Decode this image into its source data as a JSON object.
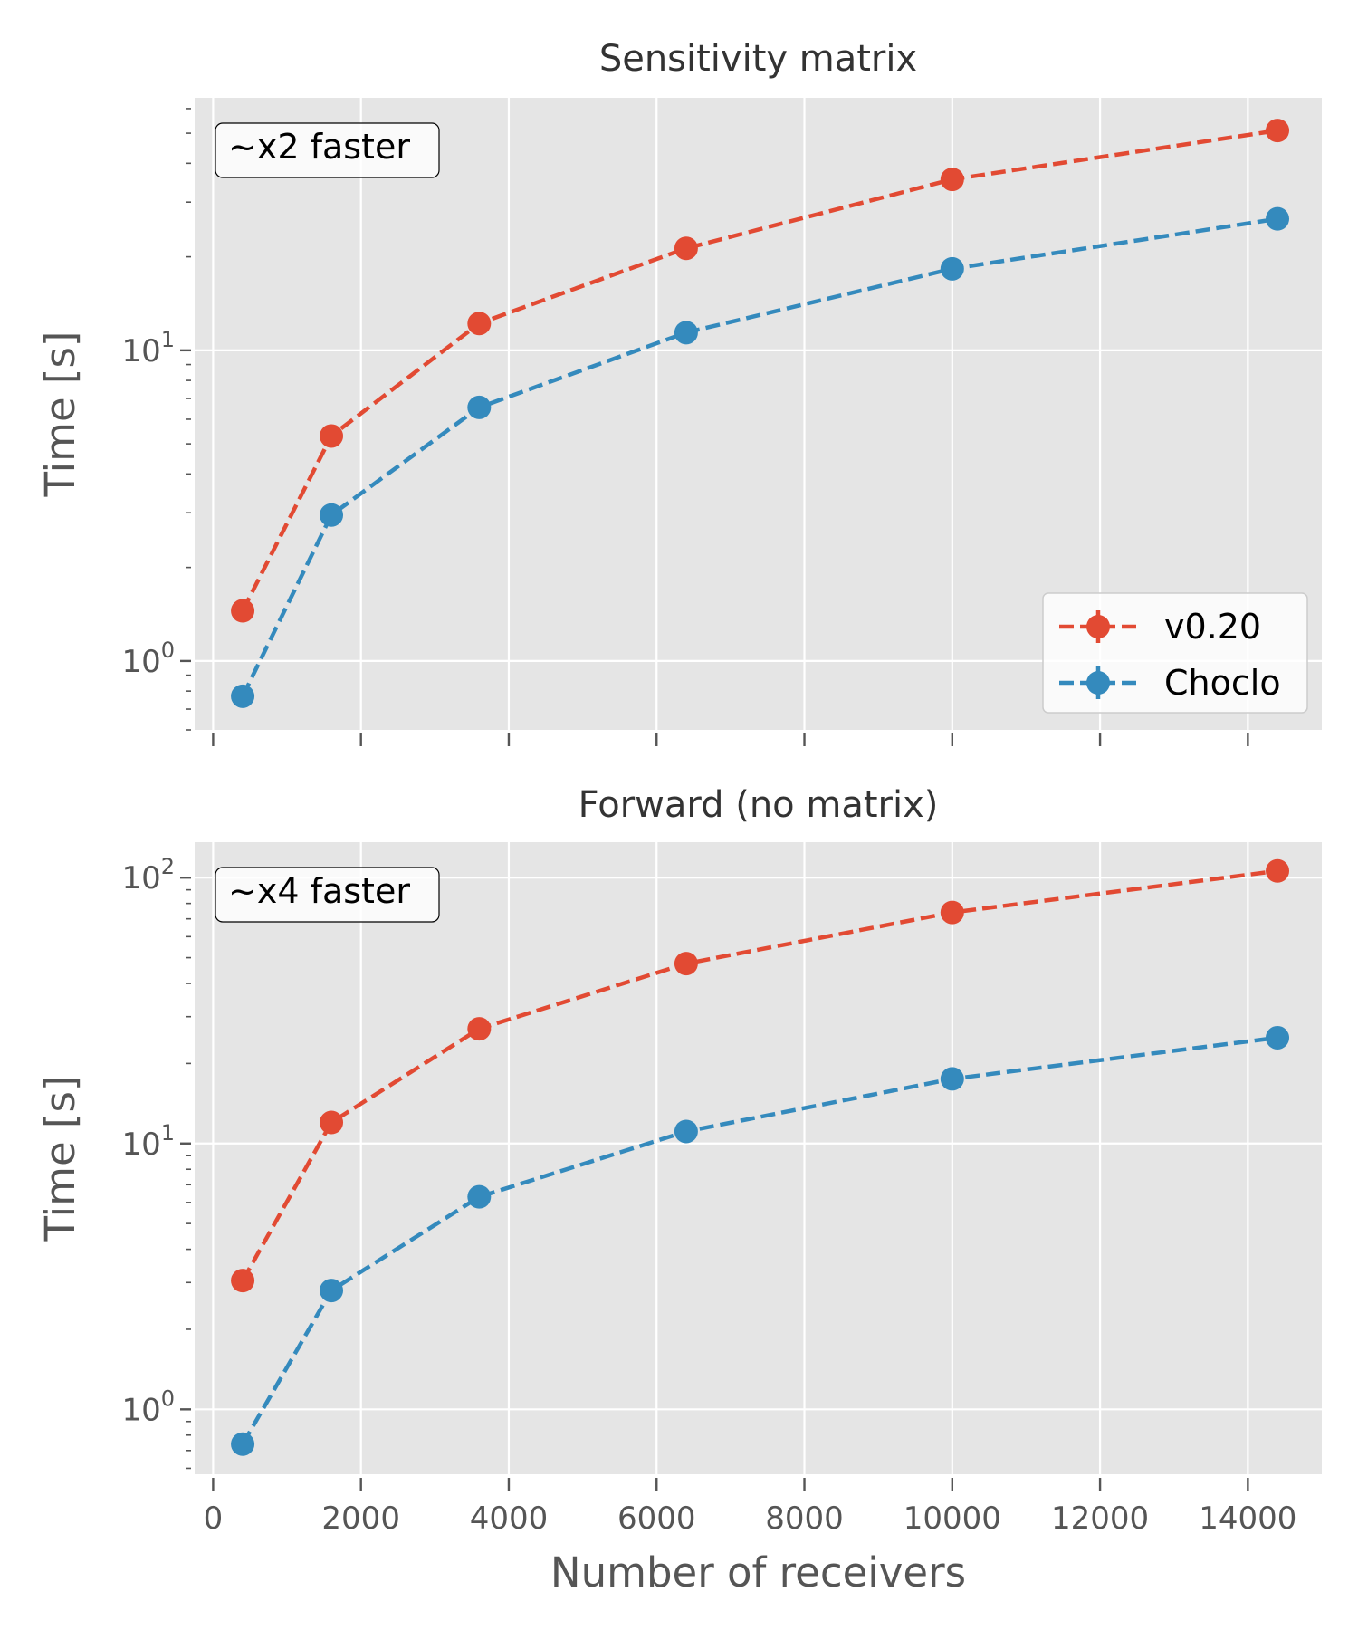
{
  "figure": {
    "xlabel": "Number of receivers"
  },
  "colors": {
    "v020": "#E24A33",
    "choclo": "#348ABD",
    "panel_bg": "#E5E5E5",
    "grid": "#FFFFFF"
  },
  "legend": {
    "placement": "lower-right",
    "entries": [
      "v0.20",
      "Choclo"
    ]
  },
  "chart_data": [
    {
      "type": "line",
      "title": "Sensitivity matrix",
      "ylabel": "Time [s]",
      "yscale": "log",
      "annotation": "~x2 faster",
      "x": [
        400,
        1600,
        3600,
        6400,
        10000,
        14400
      ],
      "xlim": [
        -250,
        15000
      ],
      "ylim": [
        0.6,
        65
      ],
      "ytick_labels": [
        {
          "base": "10",
          "exp": "0"
        },
        {
          "base": "10",
          "exp": "1"
        }
      ],
      "grid": true,
      "series": [
        {
          "name": "v0.20",
          "values": [
            1.45,
            5.3,
            12.2,
            21.3,
            35.5,
            51.0
          ]
        },
        {
          "name": "Choclo",
          "values": [
            0.77,
            2.95,
            6.55,
            11.4,
            18.3,
            26.5
          ]
        }
      ]
    },
    {
      "type": "line",
      "title": "Forward (no matrix)",
      "ylabel": "Time [s]",
      "yscale": "log",
      "annotation": "~x4 faster",
      "x": [
        400,
        1600,
        3600,
        6400,
        10000,
        14400
      ],
      "xlim": [
        -250,
        15000
      ],
      "ylim": [
        0.57,
        136
      ],
      "xtick_labels": [
        "0",
        "2000",
        "4000",
        "6000",
        "8000",
        "10000",
        "12000",
        "14000"
      ],
      "ytick_labels": [
        {
          "base": "10",
          "exp": "0"
        },
        {
          "base": "10",
          "exp": "1"
        },
        {
          "base": "10",
          "exp": "2"
        }
      ],
      "grid": true,
      "series": [
        {
          "name": "v0.20",
          "values": [
            3.05,
            12.0,
            27.0,
            47.5,
            74.0,
            106.0
          ]
        },
        {
          "name": "Choclo",
          "values": [
            0.74,
            2.8,
            6.3,
            11.1,
            17.5,
            25.0
          ]
        }
      ]
    }
  ]
}
